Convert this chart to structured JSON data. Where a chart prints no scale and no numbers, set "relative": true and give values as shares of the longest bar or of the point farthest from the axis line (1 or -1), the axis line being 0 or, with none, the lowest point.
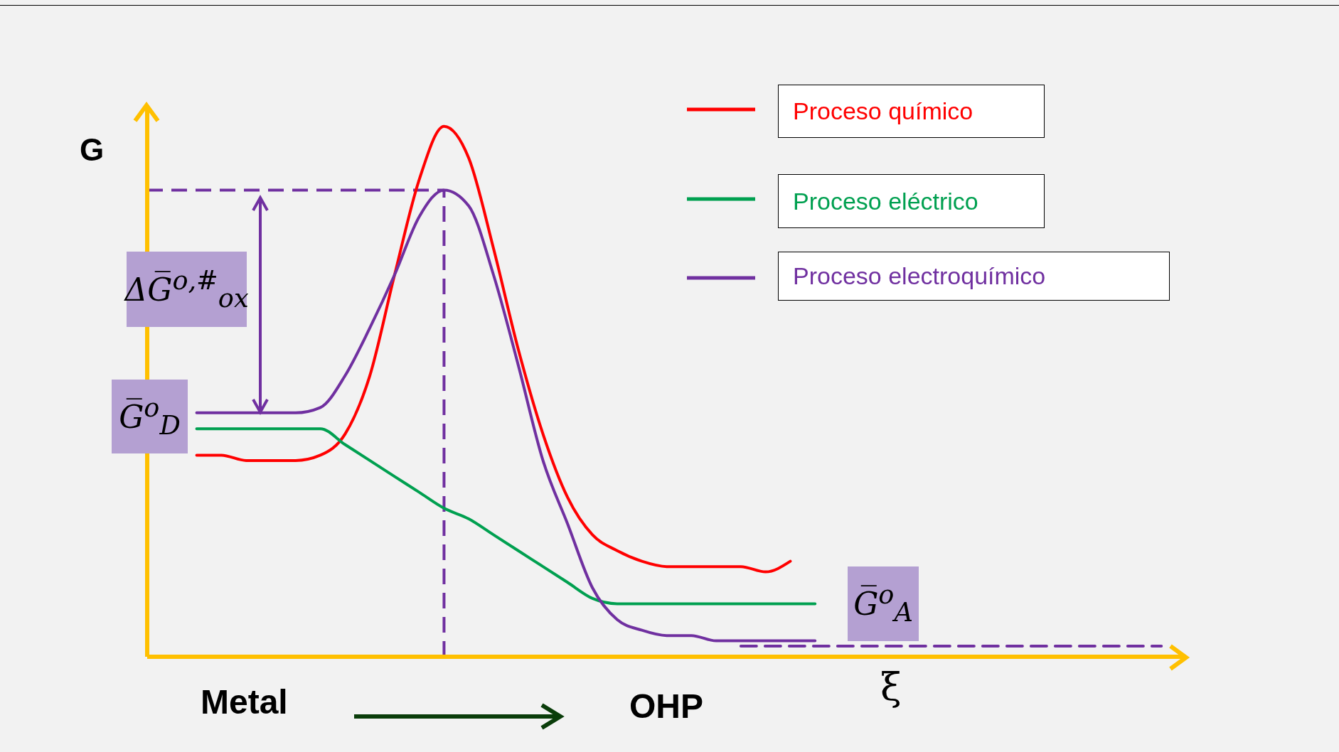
{
  "chart_data": {
    "type": "line",
    "relative": true,
    "ylabel": "G",
    "xlabel": "ξ",
    "legend": "top right",
    "marker": "none",
    "categories": [
      null,
      null,
      null,
      null,
      null,
      null,
      null,
      null,
      null,
      null,
      null,
      null,
      null,
      null,
      null,
      null,
      null,
      null,
      null,
      null,
      null,
      null,
      null,
      null,
      null,
      null,
      null,
      null,
      null,
      null,
      null,
      null,
      null,
      null,
      null,
      null,
      null,
      null,
      null,
      null
    ],
    "series": [
      {
        "name": "Proceso químico",
        "color": "#ff0000",
        "values": [
          0.38,
          0.38,
          0.37,
          0.37,
          0.37,
          0.38,
          0.42,
          0.53,
          0.72,
          0.9,
          1,
          0.94,
          0.77,
          0.58,
          0.42,
          0.3,
          0.23,
          0.2,
          0.18,
          0.17,
          0.17,
          0.17,
          0.17,
          0.16,
          0.18,
          null,
          null,
          null,
          null,
          null,
          null,
          null,
          null,
          null,
          null,
          null,
          null,
          null,
          null,
          null
        ]
      },
      {
        "name": "Proceso eléctrico",
        "color": "#00a050",
        "values": [
          0.43,
          0.43,
          0.43,
          0.43,
          0.43,
          0.43,
          0.4,
          0.37,
          0.34,
          0.31,
          0.28,
          0.26,
          0.23,
          0.2,
          0.17,
          0.14,
          0.11,
          0.1,
          0.1,
          0.1,
          0.1,
          0.1,
          0.1,
          0.1,
          0.1,
          0.1,
          null,
          null,
          null,
          null,
          null,
          null,
          null,
          null,
          null,
          null,
          null,
          null,
          null,
          null
        ]
      },
      {
        "name": "Proceso electroquímico",
        "color": "#7030a0",
        "values": [
          0.46,
          0.46,
          0.46,
          0.46,
          0.46,
          0.47,
          0.53,
          0.62,
          0.72,
          0.83,
          0.88,
          0.85,
          0.72,
          0.55,
          0.37,
          0.25,
          0.13,
          0.07,
          0.05,
          0.04,
          0.04,
          0.03,
          0.03,
          0.03,
          0.03,
          0.03,
          null,
          null,
          null,
          null,
          null,
          null,
          null,
          null,
          null,
          null,
          null,
          null,
          null,
          null
        ]
      },
      {
        "color": "#7030a0",
        "line_style": "dashed",
        "values": [
          null,
          null,
          null,
          null,
          null,
          null,
          null,
          null,
          null,
          null,
          null,
          null,
          null,
          null,
          null,
          null,
          null,
          null,
          null,
          null,
          null,
          null,
          0.02,
          0.02,
          0.02,
          0.02,
          0.02,
          0.02,
          0.02,
          0.02,
          0.02,
          0.02,
          0.02,
          0.02,
          0.02,
          0.02,
          0.02,
          0.02,
          0.02,
          0.02
        ]
      }
    ],
    "ref_lines": [
      {
        "axis": "y",
        "value": 0.88,
        "color": "#7030a0",
        "line_style": "dashed"
      }
    ],
    "annotations": [
      "ΔG̅$^{o,#}$$_{ox}$",
      "G̅$^{o}$$_{D}$",
      "G̅$^{o}$$_{A}$",
      "Metal",
      "OHP"
    ]
  }
}
